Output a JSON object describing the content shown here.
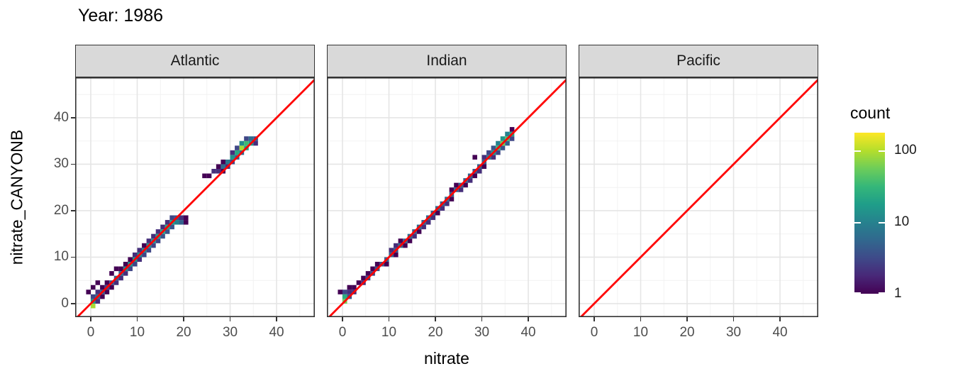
{
  "title": "Year: 1986",
  "axes": {
    "x": {
      "title": "nitrate",
      "min": -3.36,
      "max": 48.24,
      "major": [
        0,
        10,
        20,
        30,
        40
      ],
      "minor": [
        5,
        15,
        25,
        35,
        45
      ]
    },
    "y": {
      "title": "nitrate_CANYONB",
      "min": -2.91,
      "max": 48.7,
      "major": [
        0,
        10,
        20,
        30,
        40
      ],
      "minor": [
        5,
        15,
        25,
        35,
        45
      ]
    }
  },
  "legend": {
    "title": "count",
    "entries": [
      {
        "label": "100",
        "frac_from_bottom": 0.889
      },
      {
        "label": "10",
        "frac_from_bottom": 0.444
      },
      {
        "label": "1",
        "frac_from_bottom": 0.0
      }
    ],
    "scale_max": 178
  },
  "colors": {
    "reference_line": "#ff0000",
    "strip_fill": "#d9d9d9",
    "panel_border": "#333333",
    "grid_major": "#e5e5e5",
    "grid_minor": "#f2f2f2",
    "tick_text": "#4d4d4d",
    "viridis": [
      "#440154",
      "#482878",
      "#3e4a89",
      "#31688e",
      "#26828e",
      "#1f9e89",
      "#35b779",
      "#6dcd59",
      "#b4de2c",
      "#fde725"
    ]
  },
  "chart_data": {
    "type": "heatmap",
    "subtype": "bin2d",
    "title": "Year: 1986",
    "xlabel": "nitrate",
    "ylabel": "nitrate_CANYONB",
    "xlim": [
      -3.36,
      48.24
    ],
    "ylim": [
      -2.91,
      48.7
    ],
    "x_ticks": [
      0,
      10,
      20,
      30,
      40
    ],
    "y_ticks": [
      0,
      10,
      20,
      30,
      40
    ],
    "binwidth": 1,
    "grid": "on",
    "legend_position": "right",
    "color_scale": {
      "name": "viridis",
      "trans": "log10",
      "limits": [
        1,
        178
      ],
      "legend_title": "count",
      "legend_ticks": [
        1,
        10,
        100
      ]
    },
    "reference_line": {
      "type": "identity y=x",
      "color": "#ff0000"
    },
    "facets": [
      {
        "name": "Atlantic",
        "bins": [
          [
            -1,
            2,
            1
          ],
          [
            0,
            -1,
            90
          ],
          [
            0,
            0,
            15
          ],
          [
            0,
            1,
            3
          ],
          [
            0,
            3,
            1
          ],
          [
            1,
            0,
            2
          ],
          [
            1,
            1,
            6
          ],
          [
            1,
            2,
            2
          ],
          [
            1,
            4,
            1
          ],
          [
            2,
            1,
            1
          ],
          [
            2,
            2,
            4
          ],
          [
            2,
            3,
            1
          ],
          [
            3,
            2,
            1
          ],
          [
            3,
            3,
            3
          ],
          [
            3,
            4,
            1
          ],
          [
            4,
            3,
            1
          ],
          [
            4,
            4,
            4
          ],
          [
            4,
            6,
            1
          ],
          [
            5,
            4,
            2
          ],
          [
            5,
            5,
            5
          ],
          [
            5,
            7,
            1
          ],
          [
            6,
            5,
            2
          ],
          [
            6,
            6,
            6
          ],
          [
            6,
            7,
            1
          ],
          [
            7,
            6,
            2
          ],
          [
            7,
            7,
            12
          ],
          [
            7,
            8,
            1
          ],
          [
            8,
            7,
            3
          ],
          [
            8,
            8,
            16
          ],
          [
            8,
            9,
            1
          ],
          [
            9,
            8,
            3
          ],
          [
            9,
            9,
            15
          ],
          [
            9,
            10,
            2
          ],
          [
            10,
            9,
            2
          ],
          [
            10,
            10,
            12
          ],
          [
            10,
            11,
            2
          ],
          [
            11,
            10,
            3
          ],
          [
            11,
            11,
            10
          ],
          [
            11,
            12,
            1
          ],
          [
            12,
            11,
            3
          ],
          [
            12,
            12,
            14
          ],
          [
            12,
            13,
            2
          ],
          [
            13,
            12,
            3
          ],
          [
            13,
            13,
            12
          ],
          [
            13,
            14,
            2
          ],
          [
            14,
            13,
            3
          ],
          [
            14,
            14,
            18
          ],
          [
            14,
            15,
            2
          ],
          [
            15,
            14,
            4
          ],
          [
            15,
            15,
            20
          ],
          [
            15,
            16,
            2
          ],
          [
            16,
            15,
            4
          ],
          [
            16,
            16,
            22
          ],
          [
            16,
            17,
            2
          ],
          [
            17,
            16,
            4
          ],
          [
            17,
            17,
            18
          ],
          [
            17,
            18,
            3
          ],
          [
            18,
            17,
            10
          ],
          [
            18,
            18,
            4
          ],
          [
            19,
            17,
            5
          ],
          [
            19,
            18,
            2
          ],
          [
            20,
            17,
            1
          ],
          [
            20,
            18,
            1
          ],
          [
            24,
            27,
            1
          ],
          [
            25,
            27,
            1
          ],
          [
            26,
            28,
            2
          ],
          [
            27,
            28,
            2
          ],
          [
            27,
            29,
            1
          ],
          [
            28,
            28,
            1
          ],
          [
            28,
            29,
            6
          ],
          [
            28,
            30,
            1
          ],
          [
            29,
            29,
            2
          ],
          [
            29,
            30,
            8
          ],
          [
            30,
            30,
            3
          ],
          [
            30,
            31,
            14
          ],
          [
            30,
            32,
            2
          ],
          [
            31,
            31,
            5
          ],
          [
            31,
            32,
            22
          ],
          [
            31,
            33,
            3
          ],
          [
            32,
            32,
            6
          ],
          [
            32,
            33,
            90
          ],
          [
            32,
            34,
            12
          ],
          [
            33,
            33,
            20
          ],
          [
            33,
            34,
            35
          ],
          [
            33,
            35,
            3
          ],
          [
            34,
            34,
            16
          ],
          [
            34,
            35,
            6
          ],
          [
            35,
            34,
            2
          ],
          [
            35,
            35,
            4
          ]
        ]
      },
      {
        "name": "Indian",
        "bins": [
          [
            -1,
            2,
            1
          ],
          [
            0,
            0,
            60
          ],
          [
            0,
            1,
            25
          ],
          [
            0,
            2,
            3
          ],
          [
            1,
            1,
            4
          ],
          [
            1,
            2,
            2
          ],
          [
            1,
            3,
            1
          ],
          [
            2,
            2,
            2
          ],
          [
            2,
            3,
            1
          ],
          [
            3,
            4,
            1
          ],
          [
            4,
            4,
            2
          ],
          [
            4,
            5,
            1
          ],
          [
            5,
            5,
            3
          ],
          [
            5,
            6,
            1
          ],
          [
            6,
            6,
            3
          ],
          [
            6,
            7,
            1
          ],
          [
            7,
            7,
            4
          ],
          [
            7,
            8,
            1
          ],
          [
            8,
            8,
            4
          ],
          [
            9,
            8,
            1
          ],
          [
            9,
            9,
            5
          ],
          [
            10,
            10,
            5
          ],
          [
            10,
            11,
            2
          ],
          [
            11,
            10,
            1
          ],
          [
            11,
            11,
            4
          ],
          [
            11,
            12,
            2
          ],
          [
            12,
            12,
            6
          ],
          [
            12,
            13,
            1
          ],
          [
            13,
            12,
            1
          ],
          [
            13,
            13,
            5
          ],
          [
            14,
            13,
            1
          ],
          [
            14,
            14,
            6
          ],
          [
            15,
            14,
            2
          ],
          [
            15,
            15,
            5
          ],
          [
            16,
            15,
            1
          ],
          [
            16,
            16,
            6
          ],
          [
            17,
            16,
            2
          ],
          [
            17,
            17,
            5
          ],
          [
            18,
            17,
            2
          ],
          [
            18,
            18,
            6
          ],
          [
            19,
            18,
            2
          ],
          [
            19,
            19,
            5
          ],
          [
            20,
            19,
            1
          ],
          [
            20,
            20,
            6
          ],
          [
            21,
            20,
            2
          ],
          [
            21,
            21,
            5
          ],
          [
            22,
            21,
            2
          ],
          [
            22,
            22,
            6
          ],
          [
            23,
            22,
            1
          ],
          [
            23,
            23,
            5
          ],
          [
            23,
            24,
            1
          ],
          [
            24,
            24,
            5
          ],
          [
            24,
            25,
            1
          ],
          [
            25,
            24,
            2
          ],
          [
            25,
            25,
            5
          ],
          [
            26,
            25,
            1
          ],
          [
            26,
            26,
            5
          ],
          [
            27,
            26,
            2
          ],
          [
            27,
            27,
            5
          ],
          [
            28,
            27,
            1
          ],
          [
            28,
            28,
            4
          ],
          [
            28,
            31,
            1
          ],
          [
            29,
            28,
            2
          ],
          [
            29,
            29,
            5
          ],
          [
            30,
            29,
            1
          ],
          [
            30,
            30,
            5
          ],
          [
            30,
            31,
            2
          ],
          [
            31,
            31,
            8
          ],
          [
            31,
            32,
            3
          ],
          [
            32,
            31,
            2
          ],
          [
            32,
            32,
            15
          ],
          [
            32,
            33,
            4
          ],
          [
            33,
            32,
            3
          ],
          [
            33,
            33,
            30
          ],
          [
            33,
            34,
            10
          ],
          [
            34,
            33,
            4
          ],
          [
            34,
            34,
            60
          ],
          [
            34,
            35,
            15
          ],
          [
            35,
            34,
            5
          ],
          [
            35,
            35,
            40
          ],
          [
            35,
            36,
            10
          ],
          [
            36,
            35,
            3
          ],
          [
            36,
            36,
            20
          ],
          [
            36,
            37,
            1
          ]
        ]
      },
      {
        "name": "Pacific",
        "bins": []
      }
    ]
  }
}
